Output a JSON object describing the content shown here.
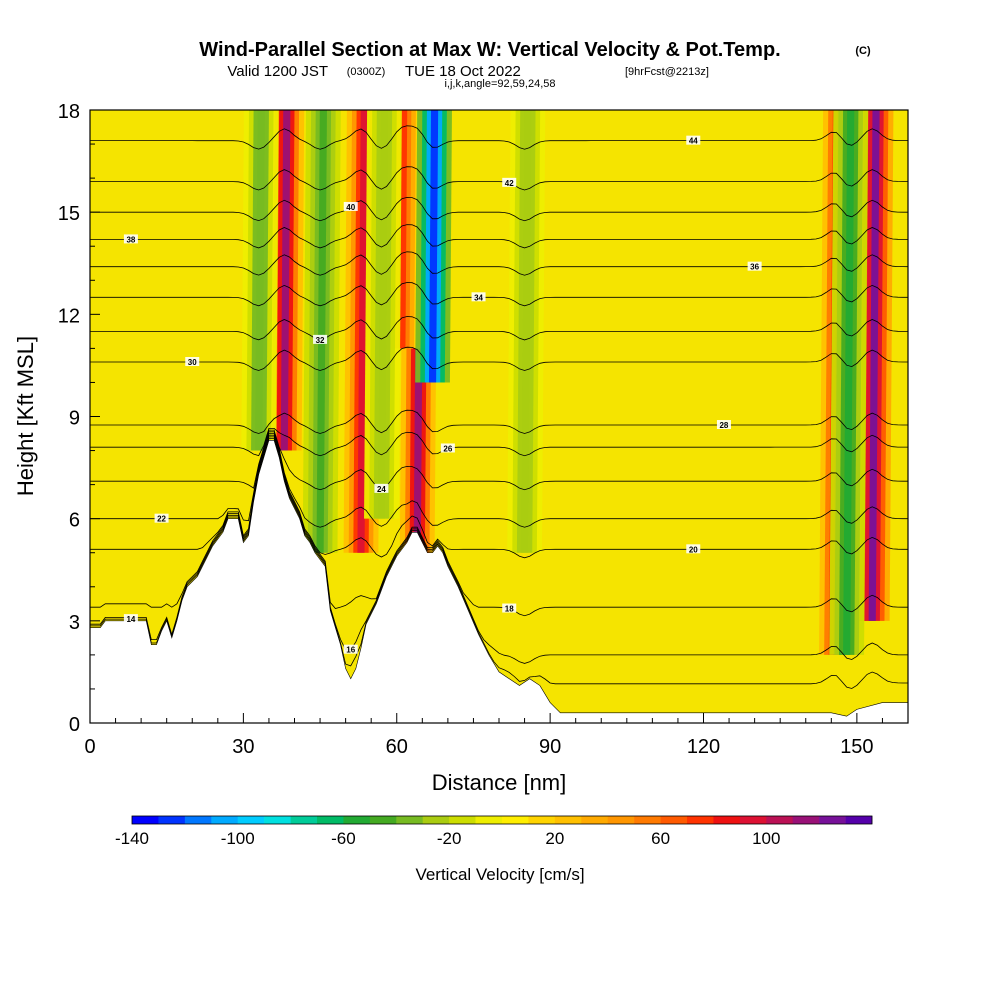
{
  "header": {
    "title": "Wind-Parallel Section at Max W: Vertical Velocity & Pot.Temp.",
    "copyright": "(C)",
    "valid_main": "Valid 1200 JST",
    "valid_utc": "(0300Z)",
    "valid_date": "TUE 18 Oct 2022",
    "fcst": "[9hrFcst@2213z]",
    "grid_info": "i,j,k,angle=92,59,24,58"
  },
  "colors": {
    "terrain": "#ffffff",
    "background": "#f5e400",
    "contour": "#000000"
  },
  "chart_data": {
    "type": "heatmap",
    "xlabel": "Distance [nm]",
    "ylabel": "Height [Kft MSL]",
    "xlim": [
      0,
      160
    ],
    "ylim": [
      0,
      18
    ],
    "x_ticks": [
      0,
      30,
      60,
      90,
      120,
      150
    ],
    "y_ticks": [
      0,
      3,
      6,
      9,
      12,
      15,
      18
    ],
    "x_tick_labels": [
      "0",
      "30",
      "60",
      "90",
      "120",
      "150"
    ],
    "y_tick_labels": [
      "0",
      "3",
      "6",
      "9",
      "12",
      "15",
      "18"
    ],
    "colorbar": {
      "label": "Vertical Velocity [cm/s]",
      "range": [
        -140,
        140
      ],
      "tick_values": [
        -140,
        -100,
        -60,
        -20,
        20,
        60,
        100
      ],
      "tick_labels": [
        "-140",
        "-100",
        "-60",
        "-20",
        "20",
        "60",
        "100"
      ],
      "colors": [
        "#0000ff",
        "#0033ff",
        "#0077ff",
        "#00aaff",
        "#00ccff",
        "#00e0e0",
        "#00cc99",
        "#00bb66",
        "#22aa33",
        "#44aa22",
        "#77bb22",
        "#aacc11",
        "#ccdd00",
        "#eeee00",
        "#ffee00",
        "#ffd400",
        "#ffc000",
        "#ffaa00",
        "#ff9600",
        "#ff7a00",
        "#ff5a00",
        "#ff3300",
        "#ee1111",
        "#dd1133",
        "#bb1155",
        "#991177",
        "#771199",
        "#5500aa"
      ]
    },
    "updrafts": [
      {
        "x": 38,
        "strength": 110,
        "from": 8,
        "to": 18
      },
      {
        "x": 53,
        "strength": 90,
        "from": 5,
        "to": 18
      },
      {
        "x": 64,
        "strength": 110,
        "from": 5,
        "to": 11
      },
      {
        "x": 61,
        "strength": 70,
        "from": 11,
        "to": 18
      },
      {
        "x": 146,
        "strength": 100,
        "from": 2,
        "to": 18
      },
      {
        "x": 153,
        "strength": 120,
        "from": 3,
        "to": 18
      }
    ],
    "downdrafts": [
      {
        "x": 33,
        "strength": -40,
        "from": 8,
        "to": 18
      },
      {
        "x": 45,
        "strength": -50,
        "from": 5,
        "to": 18
      },
      {
        "x": 67,
        "strength": -130,
        "from": 10,
        "to": 18
      },
      {
        "x": 57,
        "strength": -30,
        "from": 6,
        "to": 18
      },
      {
        "x": 85,
        "strength": -30,
        "from": 5,
        "to": 18
      },
      {
        "x": 148,
        "strength": -60,
        "from": 2,
        "to": 18
      }
    ],
    "terrain": [
      [
        0,
        2.8
      ],
      [
        2,
        2.8
      ],
      [
        3,
        3.0
      ],
      [
        8,
        3.0
      ],
      [
        11,
        3.0
      ],
      [
        12,
        2.3
      ],
      [
        13,
        2.3
      ],
      [
        14,
        2.7
      ],
      [
        15,
        3.0
      ],
      [
        16,
        2.5
      ],
      [
        17,
        3.0
      ],
      [
        18,
        3.6
      ],
      [
        19,
        4.0
      ],
      [
        21,
        4.3
      ],
      [
        23,
        4.9
      ],
      [
        24,
        5.2
      ],
      [
        26,
        5.6
      ],
      [
        27,
        6.0
      ],
      [
        29,
        6.0
      ],
      [
        30,
        5.3
      ],
      [
        31,
        5.5
      ],
      [
        32,
        6.5
      ],
      [
        33,
        7.3
      ],
      [
        34,
        7.8
      ],
      [
        35,
        8.3
      ],
      [
        36,
        8.3
      ],
      [
        37,
        7.8
      ],
      [
        38,
        7.1
      ],
      [
        39,
        6.6
      ],
      [
        40,
        6.3
      ],
      [
        41,
        6.0
      ],
      [
        42,
        5.5
      ],
      [
        43,
        5.3
      ],
      [
        44,
        5.0
      ],
      [
        45,
        4.8
      ],
      [
        46,
        4.6
      ],
      [
        47,
        3.3
      ],
      [
        48,
        2.8
      ],
      [
        49,
        2.3
      ],
      [
        50,
        1.6
      ],
      [
        51,
        1.3
      ],
      [
        52,
        1.6
      ],
      [
        53,
        2.2
      ],
      [
        54,
        2.9
      ],
      [
        56,
        3.5
      ],
      [
        58,
        4.3
      ],
      [
        60,
        4.9
      ],
      [
        62,
        5.3
      ],
      [
        63,
        5.6
      ],
      [
        64,
        5.6
      ],
      [
        65,
        5.3
      ],
      [
        66,
        5.0
      ],
      [
        67,
        5.0
      ],
      [
        68,
        5.2
      ],
      [
        69,
        5.0
      ],
      [
        70,
        4.6
      ],
      [
        72,
        4.0
      ],
      [
        74,
        3.3
      ],
      [
        76,
        2.6
      ],
      [
        78,
        2.0
      ],
      [
        80,
        1.5
      ],
      [
        82,
        1.3
      ],
      [
        84,
        1.1
      ],
      [
        86,
        1.3
      ],
      [
        88,
        1.1
      ],
      [
        90,
        0.6
      ],
      [
        92,
        0.3
      ],
      [
        94,
        0.3
      ],
      [
        100,
        0.3
      ],
      [
        110,
        0.3
      ],
      [
        120,
        0.3
      ],
      [
        130,
        0.3
      ],
      [
        140,
        0.3
      ],
      [
        145,
        0.3
      ],
      [
        148,
        0.2
      ],
      [
        150,
        0.4
      ],
      [
        155,
        0.6
      ],
      [
        160,
        0.6
      ]
    ],
    "contours": [
      {
        "label": "14",
        "base": 1.15
      },
      {
        "label": "16",
        "base": 2.0
      },
      {
        "label": "18",
        "base": 3.4
      },
      {
        "label": "20",
        "base": 5.1
      },
      {
        "label": "22",
        "base": 6.0
      },
      {
        "label": "24",
        "base": 7.1
      },
      {
        "label": "26",
        "base": 8.1
      },
      {
        "label": "28",
        "base": 8.75
      },
      {
        "label": "30",
        "base": 10.6
      },
      {
        "label": "32",
        "base": 11.5
      },
      {
        "label": "34",
        "base": 12.5
      },
      {
        "label": "36",
        "base": 13.4
      },
      {
        "label": "38",
        "base": 14.2
      },
      {
        "label": "40",
        "base": 15.0
      },
      {
        "label": "42",
        "base": 15.9
      },
      {
        "label": "44",
        "base": 17.1
      }
    ]
  }
}
